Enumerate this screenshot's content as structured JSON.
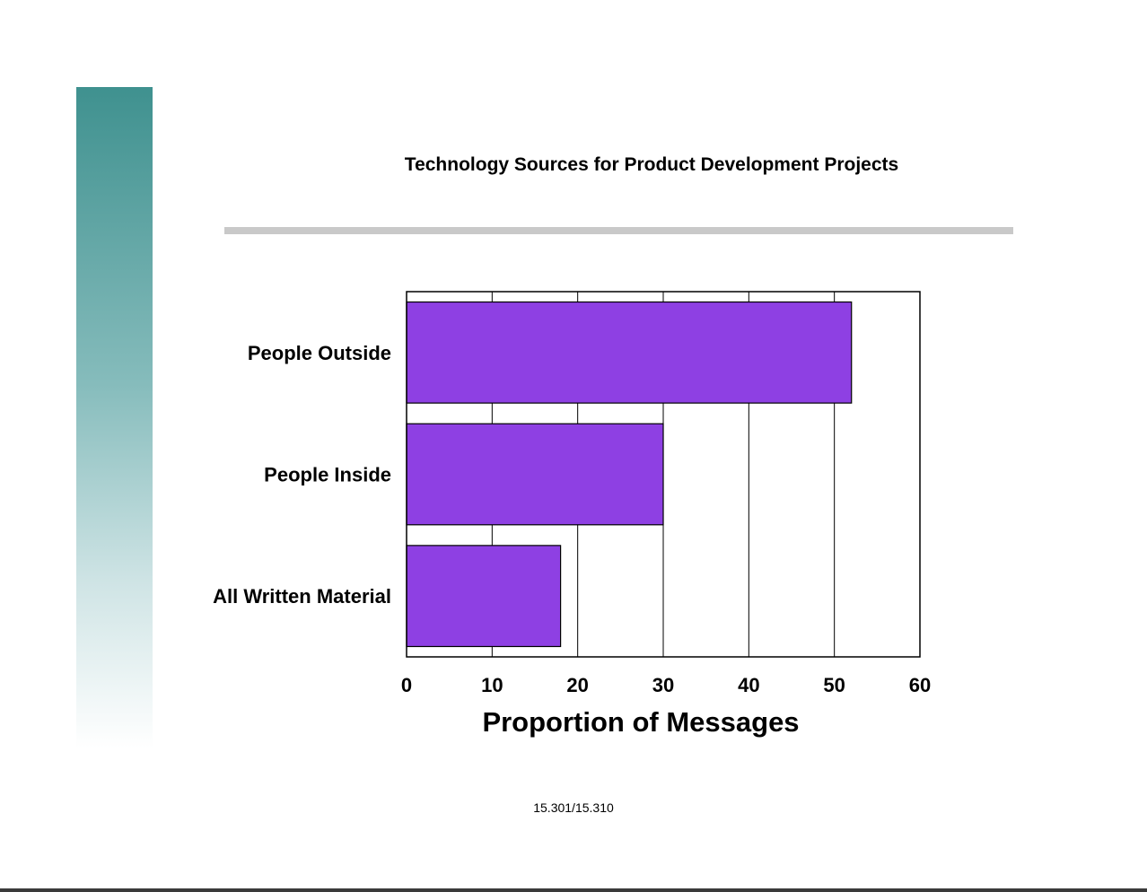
{
  "slide": {
    "title": "Technology Sources for Product Development Projects",
    "footer": "15.301/15.310"
  },
  "colors": {
    "bar": "#8e40e3",
    "sidebar_top": "#3f918f",
    "rule": "#c9c9c9"
  },
  "chart_data": {
    "type": "bar",
    "orientation": "horizontal",
    "categories": [
      "People Outside",
      "People Inside",
      "All Written Material"
    ],
    "values": [
      52,
      30,
      18
    ],
    "xlabel": "Proportion of Messages",
    "ylabel": "",
    "xlim": [
      0,
      60
    ],
    "xticks": [
      "0",
      "10",
      "20",
      "30",
      "40",
      "50",
      "60"
    ],
    "grid": "vertical",
    "legend": "none"
  }
}
